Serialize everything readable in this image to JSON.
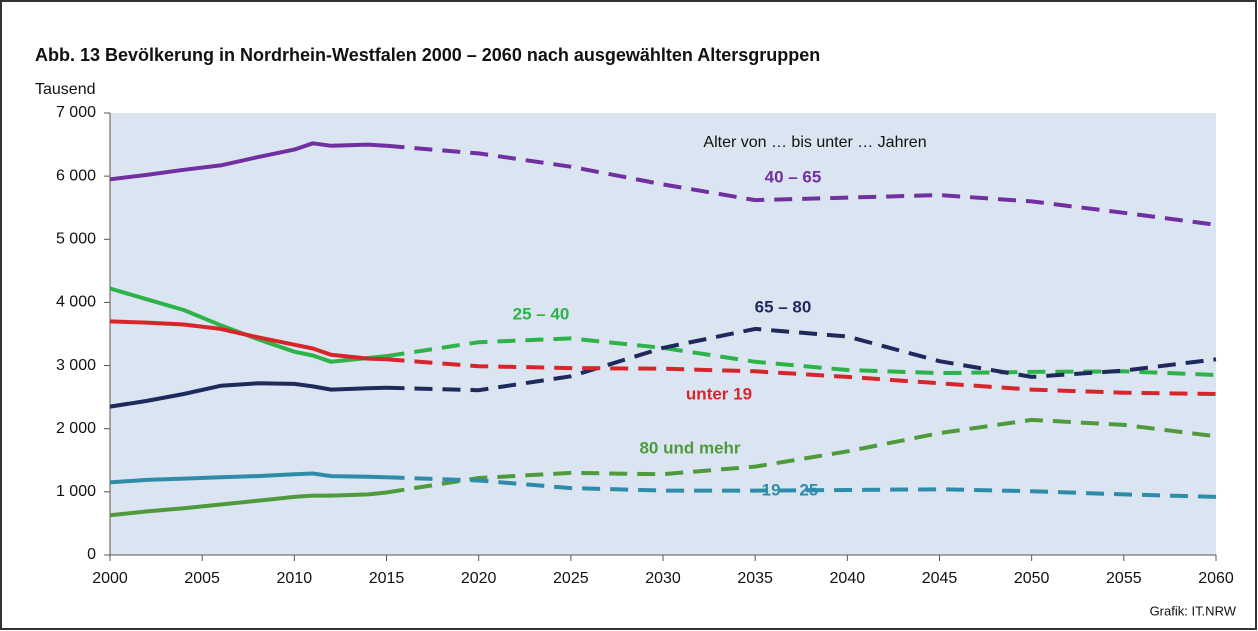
{
  "chart_data": {
    "type": "line",
    "title": "Abb. 13   Bevölkerung in Nordrhein-Westfalen 2000 – 2060 nach ausgewählten Altersgruppen",
    "ylabel": "Tausend",
    "annotation": "Alter von … bis unter … Jahren",
    "source": "Grafik: IT.NRW",
    "dashed_from": 2015,
    "x": [
      2000,
      2002,
      2004,
      2006,
      2008,
      2010,
      2011,
      2012,
      2014,
      2015,
      2020,
      2025,
      2030,
      2035,
      2040,
      2045,
      2050,
      2055,
      2060
    ],
    "series": [
      {
        "name": "40 – 65",
        "color": "#7030a0",
        "values": [
          5950,
          6020,
          6100,
          6170,
          6300,
          6420,
          6520,
          6480,
          6500,
          6480,
          6360,
          6150,
          5870,
          5620,
          5660,
          5700,
          5600,
          5420,
          5230
        ]
      },
      {
        "name": "25 – 40",
        "color": "#2db34a",
        "values": [
          4220,
          4050,
          3880,
          3640,
          3420,
          3220,
          3160,
          3060,
          3120,
          3150,
          3370,
          3430,
          3280,
          3060,
          2930,
          2880,
          2900,
          2910,
          2850
        ]
      },
      {
        "name": "65 – 80",
        "color": "#1f2a5c",
        "values": [
          2350,
          2440,
          2550,
          2680,
          2720,
          2710,
          2670,
          2620,
          2640,
          2650,
          2610,
          2830,
          3280,
          3580,
          3460,
          3070,
          2820,
          2920,
          3100
        ]
      },
      {
        "name": "unter 19",
        "color": "#d7262b",
        "values": [
          3700,
          3680,
          3650,
          3580,
          3450,
          3330,
          3270,
          3170,
          3110,
          3100,
          2990,
          2960,
          2950,
          2910,
          2820,
          2720,
          2620,
          2570,
          2550
        ]
      },
      {
        "name": "80 und mehr",
        "color": "#4e9a3c",
        "values": [
          630,
          690,
          740,
          800,
          860,
          920,
          940,
          940,
          960,
          990,
          1220,
          1300,
          1280,
          1400,
          1640,
          1930,
          2140,
          2060,
          1880
        ]
      },
      {
        "name": "19 – 25",
        "color": "#2e8ca8",
        "values": [
          1150,
          1190,
          1210,
          1230,
          1250,
          1280,
          1290,
          1250,
          1240,
          1230,
          1180,
          1060,
          1020,
          1020,
          1030,
          1040,
          1010,
          960,
          920
        ]
      }
    ],
    "xlim": [
      2000,
      2060
    ],
    "xticks": [
      2000,
      2005,
      2010,
      2015,
      2020,
      2025,
      2030,
      2035,
      2040,
      2045,
      2050,
      2055,
      2060
    ],
    "ylim": [
      0,
      7000
    ],
    "yticks": [
      0,
      {
        "value": 1000,
        "label": "1 000"
      },
      {
        "value": 2000,
        "label": "2 000"
      },
      {
        "value": 3000,
        "label": "3 000"
      },
      {
        "value": 4000,
        "label": "4 000"
      },
      {
        "value": 5000,
        "label": "5 000"
      },
      {
        "value": 6000,
        "label": "6 000"
      },
      {
        "value": 7000,
        "label": "7 000"
      }
    ]
  }
}
